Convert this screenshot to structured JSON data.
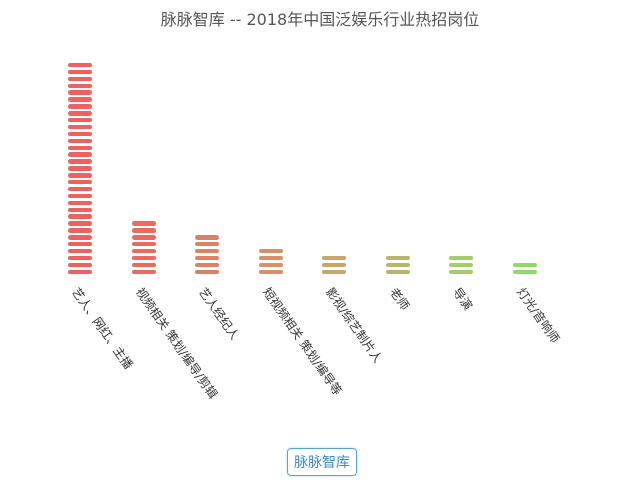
{
  "title": "脉脉智库 --  2018年中国泛娱乐行业热招岗位",
  "badge": "脉脉智库",
  "chart_data": {
    "type": "bar",
    "title": "脉脉智库 --  2018年中国泛娱乐行业热招岗位",
    "xlabel": "",
    "ylabel": "",
    "grid": false,
    "categories": [
      "艺人、网红、主播",
      "视频相关 策划/编导/剪辑",
      "艺人经纪人",
      "短视频相关 策划/编导等",
      "影视/综艺制片人",
      "老师",
      "导演",
      "灯光/音响师"
    ],
    "values": [
      31,
      8,
      6,
      4,
      3,
      3,
      3,
      2
    ],
    "colors": [
      "#f0605f",
      "#ec6a5d",
      "#dc8264",
      "#d8906a",
      "#c9a46c",
      "#b9b46c",
      "#a6cc6a",
      "#8cdb66"
    ],
    "note": "values are segment counts in pictorial stacked bars"
  }
}
